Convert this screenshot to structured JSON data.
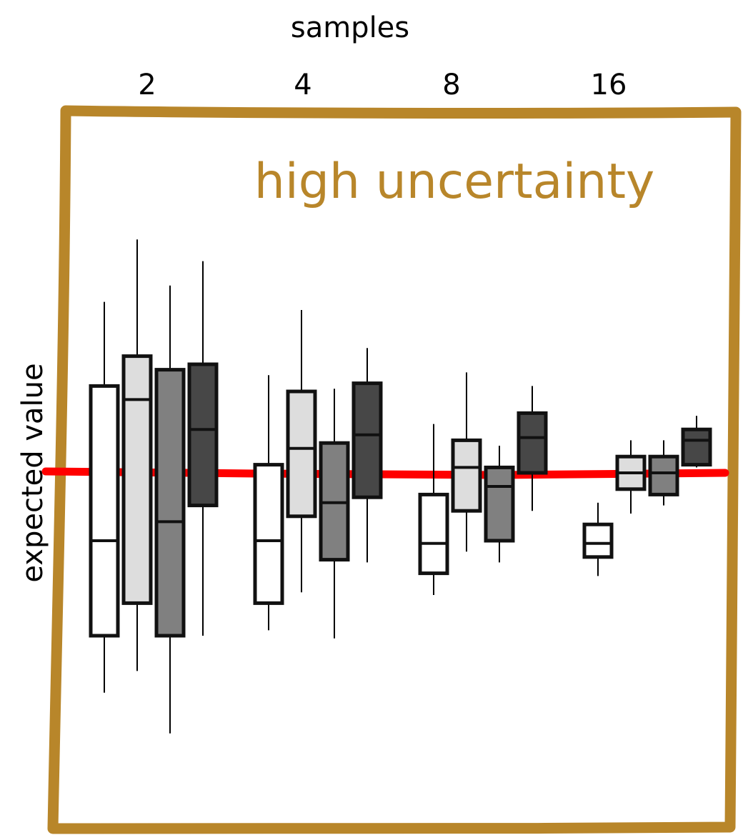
{
  "chart_data": {
    "type": "box",
    "title": "",
    "xlabel": "samples",
    "ylabel": "expected value",
    "annotation": "high uncertainty",
    "categories": [
      "2",
      "4",
      "8",
      "16"
    ],
    "reference_line": {
      "y": 0,
      "label": ""
    },
    "ylim": [
      -10,
      10
    ],
    "series_colors": [
      "#ffffff",
      "#dddddd",
      "#808080",
      "#474747"
    ],
    "groups": [
      {
        "samples": "2",
        "boxes": [
          {
            "shade": 0,
            "whisker_low": -8.1,
            "q1": -6.0,
            "median": -2.5,
            "q3": 3.2,
            "whisker_high": 6.3
          },
          {
            "shade": 1,
            "whisker_low": -7.3,
            "q1": -4.8,
            "median": 2.7,
            "q3": 4.3,
            "whisker_high": 8.6
          },
          {
            "shade": 2,
            "whisker_low": -9.6,
            "q1": -6.0,
            "median": -1.8,
            "q3": 3.8,
            "whisker_high": 6.9
          },
          {
            "shade": 3,
            "whisker_low": -6.0,
            "q1": -1.2,
            "median": 1.6,
            "q3": 4.0,
            "whisker_high": 7.8
          }
        ]
      },
      {
        "samples": "4",
        "boxes": [
          {
            "shade": 0,
            "whisker_low": -5.8,
            "q1": -4.8,
            "median": -2.5,
            "q3": 0.3,
            "whisker_high": 3.6
          },
          {
            "shade": 1,
            "whisker_low": -4.4,
            "q1": -1.6,
            "median": 0.9,
            "q3": 3.0,
            "whisker_high": 6.0
          },
          {
            "shade": 2,
            "whisker_low": -6.1,
            "q1": -3.2,
            "median": -1.1,
            "q3": 1.1,
            "whisker_high": 3.1
          },
          {
            "shade": 3,
            "whisker_low": -3.3,
            "q1": -0.9,
            "median": 1.4,
            "q3": 3.3,
            "whisker_high": 4.6
          }
        ]
      },
      {
        "samples": "8",
        "boxes": [
          {
            "shade": 0,
            "whisker_low": -4.5,
            "q1": -3.7,
            "median": -2.6,
            "q3": -0.8,
            "whisker_high": 1.8
          },
          {
            "shade": 1,
            "whisker_low": -2.9,
            "q1": -1.4,
            "median": 0.2,
            "q3": 1.2,
            "whisker_high": 3.7
          },
          {
            "shade": 2,
            "whisker_low": -3.3,
            "q1": -2.5,
            "median": -0.5,
            "q3": 0.2,
            "whisker_high": 1.0
          },
          {
            "shade": 3,
            "whisker_low": -1.4,
            "q1": 0.0,
            "median": 1.3,
            "q3": 2.2,
            "whisker_high": 3.2
          }
        ]
      },
      {
        "samples": "16",
        "boxes": [
          {
            "shade": 0,
            "whisker_low": -3.8,
            "q1": -3.1,
            "median": -2.6,
            "q3": -1.9,
            "whisker_high": -1.1
          },
          {
            "shade": 1,
            "whisker_low": -1.5,
            "q1": -0.6,
            "median": 0.0,
            "q3": 0.6,
            "whisker_high": 1.2
          },
          {
            "shade": 2,
            "whisker_low": -1.2,
            "q1": -0.8,
            "median": 0.0,
            "q3": 0.6,
            "whisker_high": 1.2
          },
          {
            "shade": 3,
            "whisker_low": 0.2,
            "q1": 0.3,
            "median": 1.2,
            "q3": 1.6,
            "whisker_high": 2.1
          }
        ]
      }
    ]
  },
  "colors": {
    "frame": "#b8862a",
    "annotation": "#b8862a",
    "reference_line": "#ff0000",
    "outline": "#111111"
  }
}
